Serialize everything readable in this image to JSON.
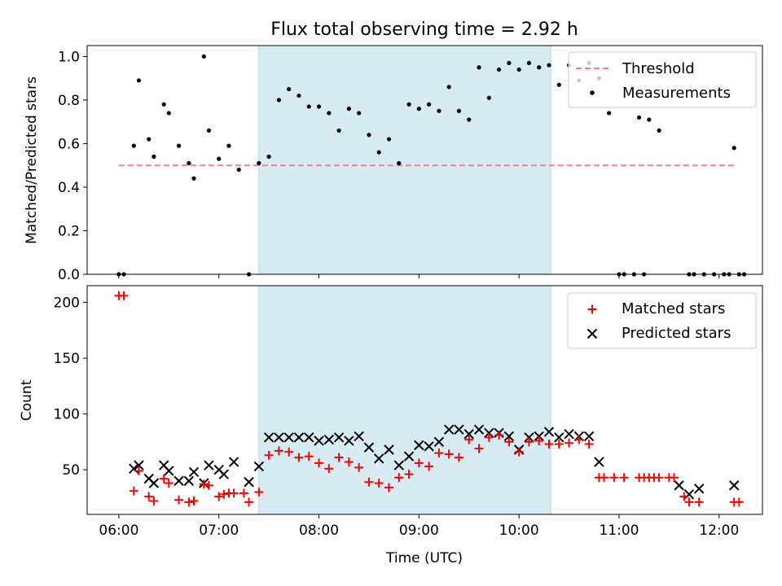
{
  "chart_data": [
    {
      "type": "scatter",
      "title": "Flux total observing time = 2.92 h",
      "xlabel": "",
      "ylabel": "Matched/Predicted stars",
      "xlim": [
        "05:41",
        "12:26"
      ],
      "ylim": [
        0,
        1.05
      ],
      "yticks": [
        "0.0",
        "0.2",
        "0.4",
        "0.6",
        "0.8",
        "1.0"
      ],
      "shaded_interval": [
        "07:24",
        "10:19"
      ],
      "shade_color": "#add8e6",
      "legend_position": "upper right",
      "legend": [
        {
          "label": "Threshold",
          "color": "#ff7f7f",
          "style": "dashed-line"
        },
        {
          "label": "Measurements",
          "color": "#000000",
          "style": "dot"
        }
      ],
      "threshold": {
        "name": "Threshold",
        "y": 0.5,
        "x_range": [
          "06:00",
          "12:09"
        ]
      },
      "series": [
        {
          "name": "Measurements",
          "color": "#000000",
          "points": [
            [
              "06:00",
              0.0
            ],
            [
              "06:03",
              0.0
            ],
            [
              "06:09",
              0.59
            ],
            [
              "06:12",
              0.89
            ],
            [
              "06:18",
              0.62
            ],
            [
              "06:21",
              0.54
            ],
            [
              "06:27",
              0.78
            ],
            [
              "06:30",
              0.74
            ],
            [
              "06:36",
              0.59
            ],
            [
              "06:42",
              0.51
            ],
            [
              "06:45",
              0.44
            ],
            [
              "06:51",
              1.0
            ],
            [
              "06:54",
              0.66
            ],
            [
              "07:00",
              0.53
            ],
            [
              "07:06",
              0.59
            ],
            [
              "07:12",
              0.48
            ],
            [
              "07:18",
              0.0
            ],
            [
              "07:24",
              0.51
            ],
            [
              "07:30",
              0.54
            ],
            [
              "07:36",
              0.8
            ],
            [
              "07:42",
              0.85
            ],
            [
              "07:48",
              0.82
            ],
            [
              "07:54",
              0.77
            ],
            [
              "08:00",
              0.77
            ],
            [
              "08:06",
              0.74
            ],
            [
              "08:12",
              0.66
            ],
            [
              "08:18",
              0.76
            ],
            [
              "08:24",
              0.74
            ],
            [
              "08:30",
              0.64
            ],
            [
              "08:36",
              0.56
            ],
            [
              "08:42",
              0.62
            ],
            [
              "08:48",
              0.51
            ],
            [
              "08:54",
              0.78
            ],
            [
              "09:00",
              0.76
            ],
            [
              "09:06",
              0.78
            ],
            [
              "09:12",
              0.75
            ],
            [
              "09:18",
              0.86
            ],
            [
              "09:24",
              0.75
            ],
            [
              "09:30",
              0.71
            ],
            [
              "09:36",
              0.95
            ],
            [
              "09:42",
              0.81
            ],
            [
              "09:48",
              0.94
            ],
            [
              "09:54",
              0.97
            ],
            [
              "10:00",
              0.94
            ],
            [
              "10:06",
              0.97
            ],
            [
              "10:12",
              0.95
            ],
            [
              "10:18",
              0.96
            ],
            [
              "10:24",
              0.87
            ],
            [
              "10:30",
              0.96
            ],
            [
              "10:36",
              0.89
            ],
            [
              "10:42",
              0.97
            ],
            [
              "10:48",
              0.9
            ],
            [
              "10:54",
              0.74
            ],
            [
              "11:00",
              0.0
            ],
            [
              "11:03",
              0.0
            ],
            [
              "11:09",
              0.0
            ],
            [
              "11:15",
              0.0
            ],
            [
              "11:42",
              0.0
            ],
            [
              "11:45",
              0.0
            ],
            [
              "11:51",
              0.0
            ],
            [
              "11:57",
              0.0
            ],
            [
              "12:03",
              0.0
            ],
            [
              "12:12",
              0.0
            ],
            [
              "12:15",
              0.0
            ],
            [
              "11:12",
              0.72
            ],
            [
              "11:18",
              0.71
            ],
            [
              "11:24",
              0.66
            ],
            [
              "12:06",
              0.0
            ],
            [
              "12:09",
              0.58
            ]
          ]
        }
      ]
    },
    {
      "type": "scatter",
      "title": "",
      "xlabel": "Time (UTC)",
      "ylabel": "Count",
      "xlim": [
        "05:41",
        "12:26"
      ],
      "ylim": [
        10,
        215
      ],
      "xticks": [
        "06:00",
        "07:00",
        "08:00",
        "09:00",
        "10:00",
        "11:00",
        "12:00"
      ],
      "yticks": [
        "50",
        "100",
        "150",
        "200"
      ],
      "shaded_interval": [
        "07:24",
        "10:19"
      ],
      "shade_color": "#add8e6",
      "legend_position": "upper right",
      "legend": [
        {
          "label": "Matched stars",
          "color": "#ff0000",
          "style": "plus"
        },
        {
          "label": "Predicted stars",
          "color": "#000000",
          "style": "x"
        }
      ],
      "series": [
        {
          "name": "Matched stars",
          "color": "#ff0000",
          "marker": "plus",
          "points": [
            [
              "06:00",
              206
            ],
            [
              "06:03",
              206
            ],
            [
              "06:09",
              31
            ],
            [
              "06:12",
              49
            ],
            [
              "06:18",
              26
            ],
            [
              "06:21",
              22
            ],
            [
              "06:27",
              42
            ],
            [
              "06:30",
              38
            ],
            [
              "06:36",
              23
            ],
            [
              "06:42",
              21
            ],
            [
              "06:45",
              22
            ],
            [
              "06:51",
              37
            ],
            [
              "06:54",
              36
            ],
            [
              "07:00",
              26
            ],
            [
              "07:03",
              28
            ],
            [
              "07:06",
              29
            ],
            [
              "07:09",
              29
            ],
            [
              "07:15",
              29
            ],
            [
              "07:18",
              21
            ],
            [
              "07:24",
              30
            ],
            [
              "07:30",
              63
            ],
            [
              "07:36",
              67
            ],
            [
              "07:42",
              66
            ],
            [
              "07:48",
              61
            ],
            [
              "07:54",
              62
            ],
            [
              "08:00",
              56
            ],
            [
              "08:06",
              51
            ],
            [
              "08:12",
              61
            ],
            [
              "08:18",
              57
            ],
            [
              "08:24",
              52
            ],
            [
              "08:30",
              39
            ],
            [
              "08:36",
              38
            ],
            [
              "08:42",
              34
            ],
            [
              "08:48",
              43
            ],
            [
              "08:54",
              46
            ],
            [
              "09:00",
              56
            ],
            [
              "09:06",
              53
            ],
            [
              "09:12",
              65
            ],
            [
              "09:18",
              64
            ],
            [
              "09:24",
              61
            ],
            [
              "09:30",
              77
            ],
            [
              "09:36",
              69
            ],
            [
              "09:42",
              79
            ],
            [
              "09:48",
              81
            ],
            [
              "09:54",
              75
            ],
            [
              "10:00",
              66
            ],
            [
              "10:06",
              75
            ],
            [
              "10:12",
              76
            ],
            [
              "10:18",
              73
            ],
            [
              "10:24",
              73
            ],
            [
              "10:30",
              74
            ],
            [
              "10:36",
              77
            ],
            [
              "10:42",
              73
            ],
            [
              "10:48",
              43
            ],
            [
              "10:51",
              43
            ],
            [
              "10:57",
              43
            ],
            [
              "11:03",
              43
            ],
            [
              "11:12",
              43
            ],
            [
              "11:15",
              43
            ],
            [
              "11:18",
              43
            ],
            [
              "11:21",
              43
            ],
            [
              "11:24",
              43
            ],
            [
              "11:30",
              43
            ],
            [
              "11:33",
              43
            ],
            [
              "11:39",
              26
            ],
            [
              "11:42",
              21
            ],
            [
              "11:48",
              21
            ],
            [
              "12:09",
              21
            ],
            [
              "12:12",
              21
            ]
          ]
        },
        {
          "name": "Predicted stars",
          "color": "#000000",
          "marker": "x",
          "points": [
            [
              "06:09",
              51
            ],
            [
              "06:12",
              54
            ],
            [
              "06:18",
              42
            ],
            [
              "06:21",
              38
            ],
            [
              "06:27",
              54
            ],
            [
              "06:30",
              49
            ],
            [
              "06:36",
              40
            ],
            [
              "06:42",
              40
            ],
            [
              "06:45",
              48
            ],
            [
              "06:51",
              38
            ],
            [
              "06:54",
              54
            ],
            [
              "07:00",
              50
            ],
            [
              "07:03",
              46
            ],
            [
              "07:09",
              57
            ],
            [
              "07:18",
              39
            ],
            [
              "07:24",
              53
            ],
            [
              "07:30",
              79
            ],
            [
              "07:36",
              79
            ],
            [
              "07:42",
              79
            ],
            [
              "07:48",
              79
            ],
            [
              "07:54",
              79
            ],
            [
              "08:00",
              76
            ],
            [
              "08:06",
              77
            ],
            [
              "08:12",
              79
            ],
            [
              "08:18",
              76
            ],
            [
              "08:24",
              80
            ],
            [
              "08:30",
              70
            ],
            [
              "08:36",
              60
            ],
            [
              "08:42",
              68
            ],
            [
              "08:48",
              54
            ],
            [
              "08:54",
              62
            ],
            [
              "09:00",
              72
            ],
            [
              "09:06",
              71
            ],
            [
              "09:12",
              75
            ],
            [
              "09:18",
              86
            ],
            [
              "09:24",
              86
            ],
            [
              "09:30",
              82
            ],
            [
              "09:36",
              86
            ],
            [
              "09:42",
              83
            ],
            [
              "09:48",
              83
            ],
            [
              "09:54",
              80
            ],
            [
              "10:00",
              68
            ],
            [
              "10:06",
              79
            ],
            [
              "10:12",
              80
            ],
            [
              "10:18",
              84
            ],
            [
              "10:24",
              79
            ],
            [
              "10:30",
              82
            ],
            [
              "10:36",
              80
            ],
            [
              "10:42",
              80
            ],
            [
              "10:48",
              57
            ],
            [
              "11:36",
              36
            ],
            [
              "11:42",
              28
            ],
            [
              "11:48",
              33
            ],
            [
              "12:09",
              36
            ]
          ]
        }
      ]
    }
  ]
}
